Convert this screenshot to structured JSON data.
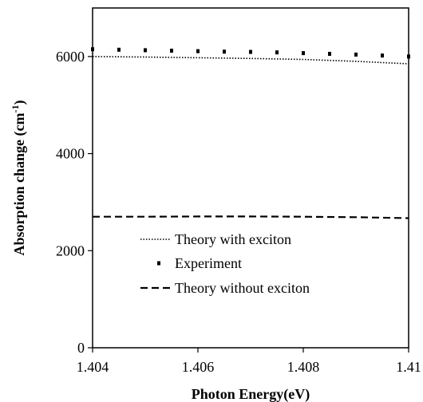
{
  "chart_data": {
    "type": "line",
    "title": "",
    "xlabel": "Photon Energy(eV)",
    "ylabel_main": "Absorption change (cm",
    "ylabel_sup": "-1",
    "ylabel_close": ")",
    "xlim": [
      1.404,
      1.41
    ],
    "ylim": [
      0,
      7000
    ],
    "x_ticks": [
      1.404,
      1.406,
      1.408,
      1.41
    ],
    "x_tick_labels": [
      "1.404",
      "1.406",
      "1.408",
      "1.41"
    ],
    "y_ticks": [
      0,
      2000,
      4000,
      6000
    ],
    "y_tick_labels": [
      "0",
      "2000",
      "4000",
      "6000"
    ],
    "grid": false,
    "legend_position": "center-bottom",
    "series": [
      {
        "name": "Theory with exciton",
        "style": "dotted",
        "color": "#000000",
        "x": [
          1.404,
          1.405,
          1.406,
          1.407,
          1.408,
          1.409,
          1.41
        ],
        "y": [
          6000,
          5990,
          5975,
          5960,
          5940,
          5900,
          5850
        ]
      },
      {
        "name": "Experiment",
        "style": "markers",
        "color": "#000000",
        "x": [
          1.404,
          1.4045,
          1.405,
          1.4055,
          1.406,
          1.4065,
          1.407,
          1.4075,
          1.408,
          1.4085,
          1.409,
          1.4095,
          1.41
        ],
        "y": [
          6150,
          6140,
          6130,
          6120,
          6110,
          6100,
          6095,
          6085,
          6070,
          6055,
          6040,
          6020,
          6000
        ]
      },
      {
        "name": "Theory without exciton",
        "style": "dashed",
        "color": "#000000",
        "x": [
          1.404,
          1.405,
          1.406,
          1.407,
          1.408,
          1.409,
          1.41
        ],
        "y": [
          2700,
          2700,
          2705,
          2705,
          2700,
          2690,
          2670
        ]
      }
    ]
  }
}
